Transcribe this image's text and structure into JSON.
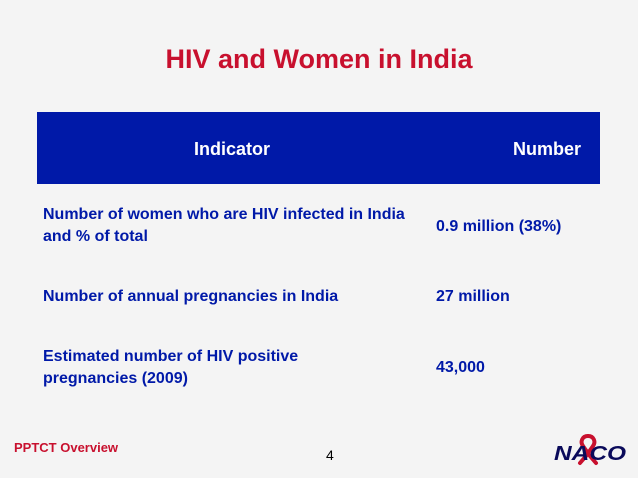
{
  "slide": {
    "title": "HIV and Women in India"
  },
  "table": {
    "headers": {
      "indicator": "Indicator",
      "number": "Number"
    },
    "rows": [
      {
        "indicator": "Number of women who are HIV infected in India and % of total",
        "number": "0.9 million (38%)"
      },
      {
        "indicator": "Number of annual pregnancies in India",
        "number": "27 million"
      },
      {
        "indicator": "Estimated number of HIV positive pregnancies (2009)",
        "number": "43,000"
      }
    ]
  },
  "footer": {
    "left_label": "PPTCT Overview",
    "page_number": "4",
    "logo_text": "NACO"
  },
  "colors": {
    "title_red": "#c8102e",
    "header_blue": "#0019a8",
    "background": "#f4f4f4"
  }
}
